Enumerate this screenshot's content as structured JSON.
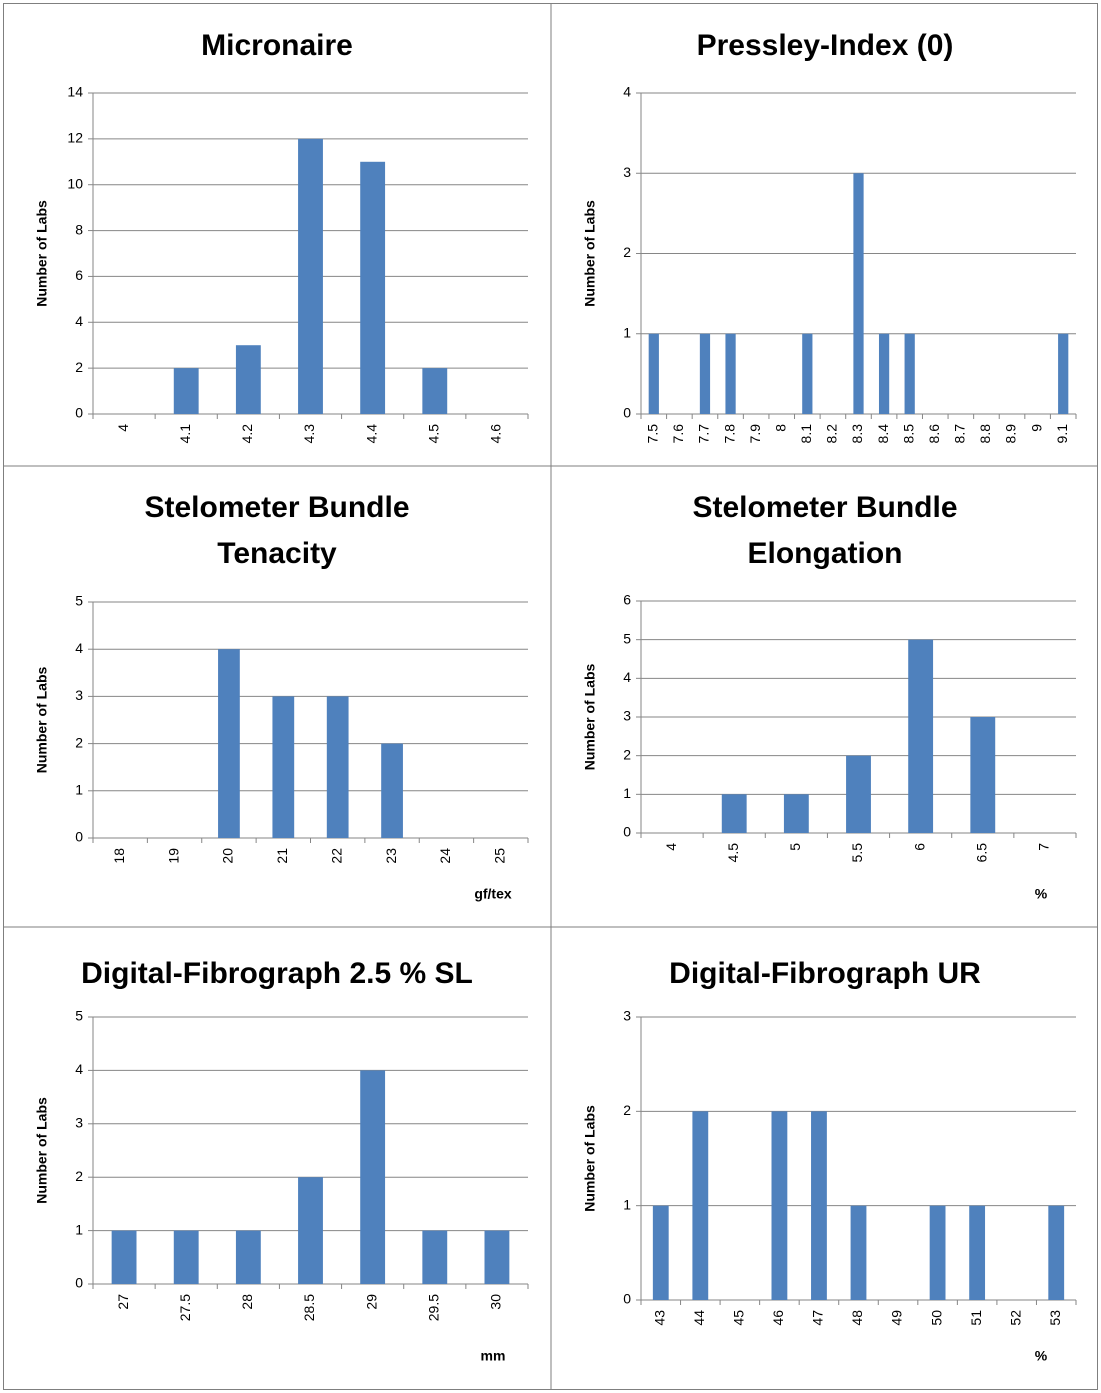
{
  "chart_data": [
    {
      "type": "bar",
      "title": "Micronaire",
      "y_label": "Number of Labs",
      "categories": [
        "4",
        "4.1",
        "4.2",
        "4.3",
        "4.4",
        "4.5",
        "4.6"
      ],
      "values": [
        0,
        2,
        3,
        12,
        11,
        2,
        0
      ],
      "color": "#4f81bd",
      "ylim": [
        0,
        14
      ],
      "yticks": [
        0,
        2,
        4,
        6,
        8,
        10,
        12,
        14
      ],
      "grid": true
    },
    {
      "type": "bar",
      "title": "Pressley-Index (0)",
      "y_label": "Number of Labs",
      "categories": [
        "7.5",
        "7.6",
        "7.7",
        "7.8",
        "7.9",
        "8",
        "8.1",
        "8.2",
        "8.3",
        "8.4",
        "8.5",
        "8.6",
        "8.7",
        "8.8",
        "8.9",
        "9",
        "9.1"
      ],
      "values": [
        1,
        0,
        1,
        1,
        0,
        0,
        1,
        0,
        3,
        1,
        1,
        0,
        0,
        0,
        0,
        0,
        1
      ],
      "color": "#4f81bd",
      "ylim": [
        0,
        4
      ],
      "yticks": [
        0,
        1,
        2,
        3,
        4
      ],
      "grid": true
    },
    {
      "type": "bar",
      "title": "Stelometer Bundle Tenacity",
      "y_label": "Number of Labs",
      "x_label": "gf/tex",
      "categories": [
        "18",
        "19",
        "20",
        "21",
        "22",
        "23",
        "24",
        "25"
      ],
      "values": [
        0,
        0,
        4,
        3,
        3,
        2,
        0,
        0
      ],
      "color": "#4f81bd",
      "ylim": [
        0,
        5
      ],
      "yticks": [
        0,
        1,
        2,
        3,
        4,
        5
      ],
      "grid": true
    },
    {
      "type": "bar",
      "title": "Stelometer Bundle Elongation",
      "y_label": "Number of Labs",
      "x_label": "%",
      "categories": [
        "4",
        "4.5",
        "5",
        "5.5",
        "6",
        "6.5",
        "7"
      ],
      "values": [
        0,
        1,
        1,
        2,
        5,
        3,
        0
      ],
      "color": "#4f81bd",
      "ylim": [
        0,
        6
      ],
      "yticks": [
        0,
        1,
        2,
        3,
        4,
        5,
        6
      ],
      "grid": true
    },
    {
      "type": "bar",
      "title": "Digital-Fibrograph 2.5 % SL",
      "y_label": "Number of Labs",
      "x_label": "mm",
      "categories": [
        "27",
        "27.5",
        "28",
        "28.5",
        "29",
        "29.5",
        "30"
      ],
      "values": [
        1,
        1,
        1,
        2,
        4,
        1,
        1
      ],
      "color": "#4f81bd",
      "ylim": [
        0,
        5
      ],
      "yticks": [
        0,
        1,
        2,
        3,
        4,
        5
      ],
      "grid": true
    },
    {
      "type": "bar",
      "title": "Digital-Fibrograph UR",
      "y_label": "Number of Labs",
      "x_label": "%",
      "categories": [
        "43",
        "44",
        "45",
        "46",
        "47",
        "48",
        "49",
        "50",
        "51",
        "52",
        "53"
      ],
      "values": [
        1,
        2,
        0,
        2,
        2,
        1,
        0,
        1,
        1,
        0,
        1
      ],
      "color": "#4f81bd",
      "ylim": [
        0,
        3
      ],
      "yticks": [
        0,
        1,
        2,
        3
      ],
      "grid": true
    }
  ]
}
